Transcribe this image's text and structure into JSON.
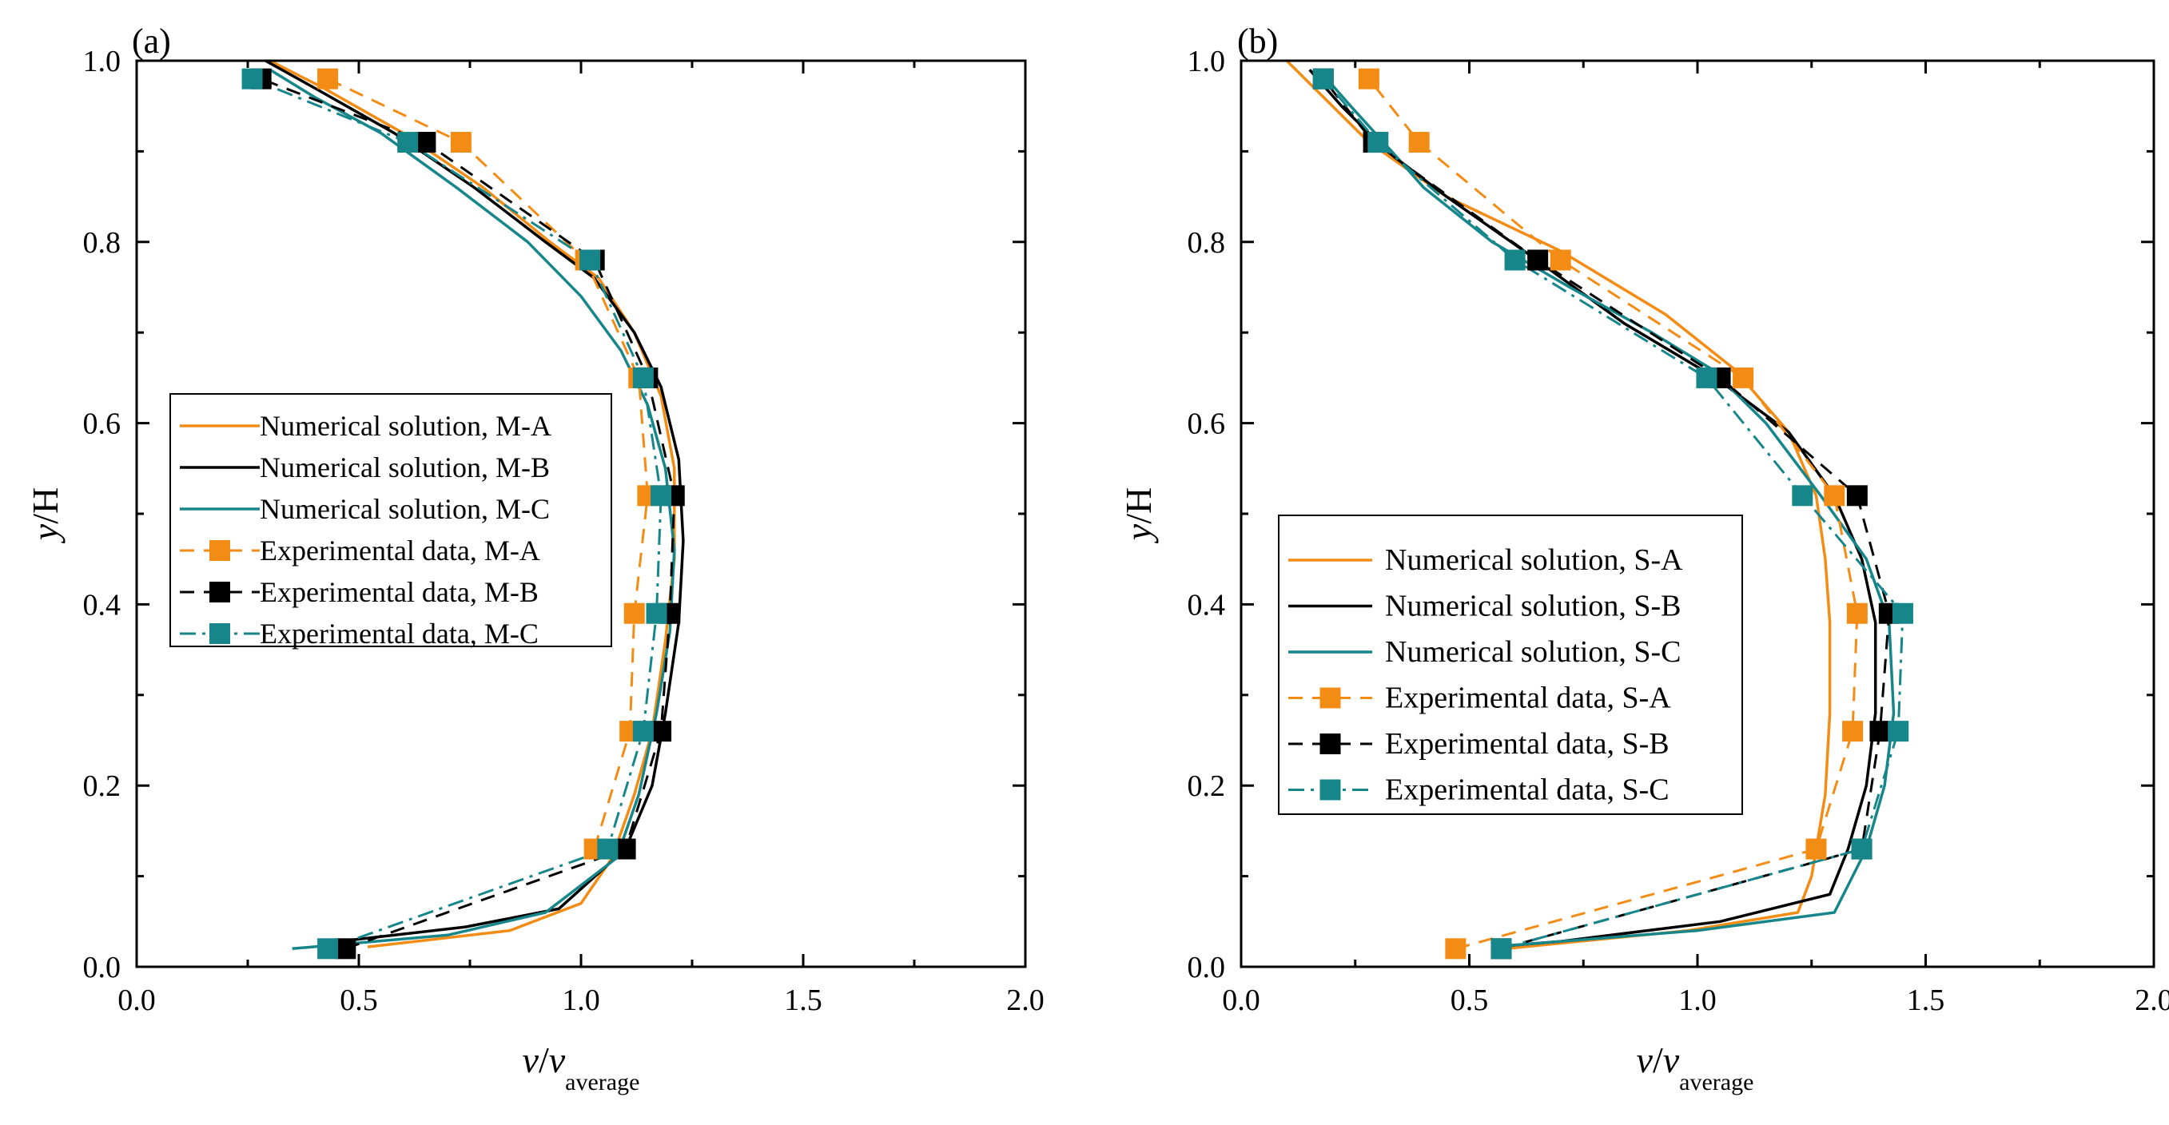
{
  "figure": {
    "colors": {
      "orange": "#F28C14",
      "black": "#000000",
      "teal": "#17868A"
    }
  },
  "chart_data": [
    {
      "type": "line",
      "panel_label": "(a)",
      "xlabel": {
        "main": "v/v",
        "sub": "average"
      },
      "ylabel": "y/H",
      "xlim": [
        0,
        2
      ],
      "ylim": [
        0,
        1
      ],
      "xticks": [
        "0.0",
        "0.5",
        "1.0",
        "1.5",
        "2.0"
      ],
      "yticks": [
        "0.0",
        "0.2",
        "0.4",
        "0.6",
        "0.8",
        "1.0"
      ],
      "legend_position": "center-left",
      "series": [
        {
          "name": "Numerical solution, M-A",
          "kind": "numerical",
          "color": "#F28C14",
          "dash": "solid",
          "points": [
            [
              0.3,
              1.0
            ],
            [
              0.42,
              0.97
            ],
            [
              0.6,
              0.92
            ],
            [
              0.78,
              0.86
            ],
            [
              0.93,
              0.8
            ],
            [
              1.04,
              0.76
            ],
            [
              1.12,
              0.7
            ],
            [
              1.18,
              0.63
            ],
            [
              1.21,
              0.55
            ],
            [
              1.21,
              0.45
            ],
            [
              1.19,
              0.36
            ],
            [
              1.16,
              0.26
            ],
            [
              1.12,
              0.19
            ],
            [
              1.07,
              0.12
            ],
            [
              1.0,
              0.07
            ],
            [
              0.84,
              0.04
            ],
            [
              0.52,
              0.022
            ]
          ]
        },
        {
          "name": "Numerical solution, M-B",
          "kind": "numerical",
          "color": "#000000",
          "dash": "solid",
          "points": [
            [
              0.29,
              1.0
            ],
            [
              0.4,
              0.97
            ],
            [
              0.58,
              0.92
            ],
            [
              0.76,
              0.86
            ],
            [
              0.92,
              0.8
            ],
            [
              1.03,
              0.76
            ],
            [
              1.12,
              0.7
            ],
            [
              1.18,
              0.64
            ],
            [
              1.22,
              0.56
            ],
            [
              1.23,
              0.47
            ],
            [
              1.22,
              0.38
            ],
            [
              1.19,
              0.28
            ],
            [
              1.16,
              0.2
            ],
            [
              1.1,
              0.13
            ],
            [
              0.95,
              0.064
            ],
            [
              0.74,
              0.044
            ],
            [
              0.42,
              0.026
            ]
          ]
        },
        {
          "name": "Numerical solution, M-C",
          "kind": "numerical",
          "color": "#17868A",
          "dash": "solid",
          "points": [
            [
              0.3,
              0.99
            ],
            [
              0.4,
              0.96
            ],
            [
              0.55,
              0.92
            ],
            [
              0.72,
              0.86
            ],
            [
              0.88,
              0.8
            ],
            [
              1.0,
              0.74
            ],
            [
              1.09,
              0.68
            ],
            [
              1.15,
              0.62
            ],
            [
              1.19,
              0.55
            ],
            [
              1.21,
              0.46
            ],
            [
              1.2,
              0.37
            ],
            [
              1.17,
              0.28
            ],
            [
              1.13,
              0.19
            ],
            [
              1.08,
              0.12
            ],
            [
              0.92,
              0.06
            ],
            [
              0.7,
              0.035
            ],
            [
              0.35,
              0.02
            ]
          ]
        },
        {
          "name": "Experimental data, M-A",
          "kind": "experimental",
          "color": "#F28C14",
          "dash": "dash",
          "points": [
            [
              1.03,
              0.13
            ],
            [
              1.11,
              0.26
            ],
            [
              1.12,
              0.39
            ],
            [
              1.15,
              0.52
            ],
            [
              1.13,
              0.65
            ],
            [
              1.01,
              0.78
            ],
            [
              0.73,
              0.91
            ],
            [
              0.43,
              0.98
            ]
          ]
        },
        {
          "name": "Experimental data, M-B",
          "kind": "experimental",
          "color": "#000000",
          "dash": "dash",
          "points": [
            [
              0.47,
              0.02
            ],
            [
              1.1,
              0.13
            ],
            [
              1.18,
              0.26
            ],
            [
              1.2,
              0.39
            ],
            [
              1.21,
              0.52
            ],
            [
              1.15,
              0.65
            ],
            [
              1.03,
              0.78
            ],
            [
              0.65,
              0.91
            ],
            [
              0.28,
              0.98
            ]
          ]
        },
        {
          "name": "Experimental data, M-C",
          "kind": "experimental",
          "color": "#17868A",
          "dash": "dashdot",
          "points": [
            [
              0.43,
              0.02
            ],
            [
              1.06,
              0.13
            ],
            [
              1.14,
              0.26
            ],
            [
              1.17,
              0.39
            ],
            [
              1.18,
              0.52
            ],
            [
              1.14,
              0.65
            ],
            [
              1.02,
              0.78
            ],
            [
              0.61,
              0.91
            ],
            [
              0.26,
              0.98
            ]
          ]
        }
      ]
    },
    {
      "type": "line",
      "panel_label": "(b)",
      "xlabel": {
        "main": "v/v",
        "sub": "average"
      },
      "ylabel": "y/H",
      "xlim": [
        0,
        2
      ],
      "ylim": [
        0,
        1
      ],
      "xticks": [
        "0.0",
        "0.5",
        "1.0",
        "1.5",
        "2.0"
      ],
      "yticks": [
        "0.0",
        "0.2",
        "0.4",
        "0.6",
        "0.8",
        "1.0"
      ],
      "legend_position": "lower-left",
      "series": [
        {
          "name": "Numerical solution, S-A",
          "kind": "numerical",
          "color": "#F28C14",
          "dash": "solid",
          "points": [
            [
              0.1,
              1.0
            ],
            [
              0.18,
              0.96
            ],
            [
              0.28,
              0.91
            ],
            [
              0.45,
              0.85
            ],
            [
              0.7,
              0.79
            ],
            [
              0.93,
              0.72
            ],
            [
              1.08,
              0.66
            ],
            [
              1.2,
              0.59
            ],
            [
              1.26,
              0.52
            ],
            [
              1.28,
              0.45
            ],
            [
              1.29,
              0.38
            ],
            [
              1.29,
              0.28
            ],
            [
              1.28,
              0.19
            ],
            [
              1.25,
              0.1
            ],
            [
              1.22,
              0.06
            ],
            [
              0.98,
              0.04
            ],
            [
              0.58,
              0.02
            ]
          ]
        },
        {
          "name": "Numerical solution, S-B",
          "kind": "numerical",
          "color": "#000000",
          "dash": "solid",
          "points": [
            [
              0.15,
              0.99
            ],
            [
              0.22,
              0.95
            ],
            [
              0.32,
              0.9
            ],
            [
              0.45,
              0.85
            ],
            [
              0.62,
              0.79
            ],
            [
              0.84,
              0.71
            ],
            [
              1.04,
              0.65
            ],
            [
              1.2,
              0.59
            ],
            [
              1.3,
              0.52
            ],
            [
              1.36,
              0.45
            ],
            [
              1.39,
              0.38
            ],
            [
              1.39,
              0.28
            ],
            [
              1.37,
              0.2
            ],
            [
              1.33,
              0.13
            ],
            [
              1.29,
              0.08
            ],
            [
              1.05,
              0.05
            ],
            [
              0.7,
              0.028
            ],
            [
              0.55,
              0.022
            ]
          ]
        },
        {
          "name": "Numerical solution, S-C",
          "kind": "numerical",
          "color": "#17868A",
          "dash": "solid",
          "points": [
            [
              0.17,
              0.99
            ],
            [
              0.24,
              0.95
            ],
            [
              0.33,
              0.9
            ],
            [
              0.4,
              0.86
            ],
            [
              0.55,
              0.8
            ],
            [
              0.72,
              0.75
            ],
            [
              0.9,
              0.7
            ],
            [
              1.03,
              0.66
            ],
            [
              1.15,
              0.6
            ],
            [
              1.27,
              0.52
            ],
            [
              1.37,
              0.45
            ],
            [
              1.42,
              0.38
            ],
            [
              1.43,
              0.28
            ],
            [
              1.41,
              0.2
            ],
            [
              1.37,
              0.13
            ],
            [
              1.3,
              0.06
            ],
            [
              1.0,
              0.04
            ],
            [
              0.65,
              0.026
            ],
            [
              0.55,
              0.022
            ]
          ]
        },
        {
          "name": "Experimental data, S-A",
          "kind": "experimental",
          "color": "#F28C14",
          "dash": "dash",
          "points": [
            [
              0.47,
              0.02
            ],
            [
              1.26,
              0.13
            ],
            [
              1.34,
              0.26
            ],
            [
              1.35,
              0.39
            ],
            [
              1.3,
              0.52
            ],
            [
              1.1,
              0.65
            ],
            [
              0.7,
              0.78
            ],
            [
              0.39,
              0.91
            ],
            [
              0.28,
              0.98
            ]
          ]
        },
        {
          "name": "Experimental data, S-B",
          "kind": "experimental",
          "color": "#000000",
          "dash": "dash",
          "points": [
            [
              0.57,
              0.02
            ],
            [
              1.36,
              0.13
            ],
            [
              1.4,
              0.26
            ],
            [
              1.42,
              0.39
            ],
            [
              1.35,
              0.52
            ],
            [
              1.05,
              0.65
            ],
            [
              0.65,
              0.78
            ],
            [
              0.29,
              0.91
            ],
            [
              0.18,
              0.98
            ]
          ]
        },
        {
          "name": "Experimental data, S-C",
          "kind": "experimental",
          "color": "#17868A",
          "dash": "dashdot",
          "points": [
            [
              0.57,
              0.02
            ],
            [
              1.36,
              0.13
            ],
            [
              1.44,
              0.26
            ],
            [
              1.45,
              0.39
            ],
            [
              1.23,
              0.52
            ],
            [
              1.02,
              0.65
            ],
            [
              0.6,
              0.78
            ],
            [
              0.3,
              0.91
            ],
            [
              0.18,
              0.98
            ]
          ]
        }
      ]
    }
  ]
}
